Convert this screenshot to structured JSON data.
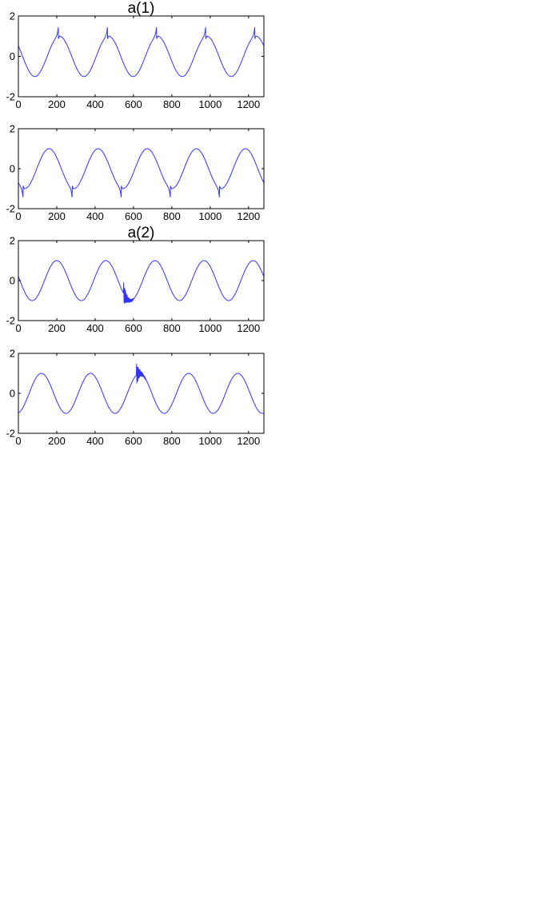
{
  "figure": {
    "line_color": "#3333ff",
    "axes_color": "#000000"
  },
  "chart_data": [
    {
      "type": "line",
      "title": "a(1)",
      "xlim": [
        0,
        1280
      ],
      "ylim": [
        -2,
        2
      ],
      "xticks": [
        0,
        200,
        400,
        600,
        800,
        1000,
        1200
      ],
      "yticks": [
        -2,
        0,
        2
      ],
      "grid": false,
      "series": [
        {
          "period": 256,
          "amplitude": 1,
          "phase_zero_cross_x": 150,
          "spike_direction": "up",
          "spike_amplitude": 0.45,
          "spike_x": [
            208,
            464,
            720,
            976,
            1232
          ]
        }
      ]
    },
    {
      "type": "line",
      "title": "",
      "xlim": [
        0,
        1280
      ],
      "ylim": [
        -2,
        2
      ],
      "xticks": [
        0,
        200,
        400,
        600,
        800,
        1000,
        1200
      ],
      "yticks": [
        -2,
        0,
        2
      ],
      "grid": false,
      "series": [
        {
          "period": 256,
          "amplitude": 1,
          "phase_zero_cross_x": 96,
          "spike_direction": "down",
          "spike_amplitude": 0.45,
          "spike_x": [
            24,
            280,
            536,
            792,
            1048
          ]
        }
      ]
    },
    {
      "type": "line",
      "title": "a(2)",
      "xlim": [
        0,
        1280
      ],
      "ylim": [
        -2,
        2
      ],
      "xticks": [
        0,
        200,
        400,
        600,
        800,
        1000,
        1200
      ],
      "yticks": [
        -2,
        0,
        2
      ],
      "grid": false,
      "series": [
        {
          "period": 256,
          "amplitude": 1,
          "phase_zero_cross_x": 136,
          "burst_x": [
            548,
            600
          ],
          "burst_amplitude": 0.6
        }
      ]
    },
    {
      "type": "line",
      "title": "",
      "xlim": [
        0,
        1280
      ],
      "ylim": [
        -2,
        2
      ],
      "xticks": [
        0,
        200,
        400,
        600,
        800,
        1000,
        1200
      ],
      "yticks": [
        -2,
        0,
        2
      ],
      "grid": false,
      "series": [
        {
          "period": 256,
          "amplitude": 1,
          "phase_zero_cross_x": 56,
          "burst_x": [
            615,
            665
          ],
          "burst_amplitude": 0.6
        }
      ]
    }
  ]
}
